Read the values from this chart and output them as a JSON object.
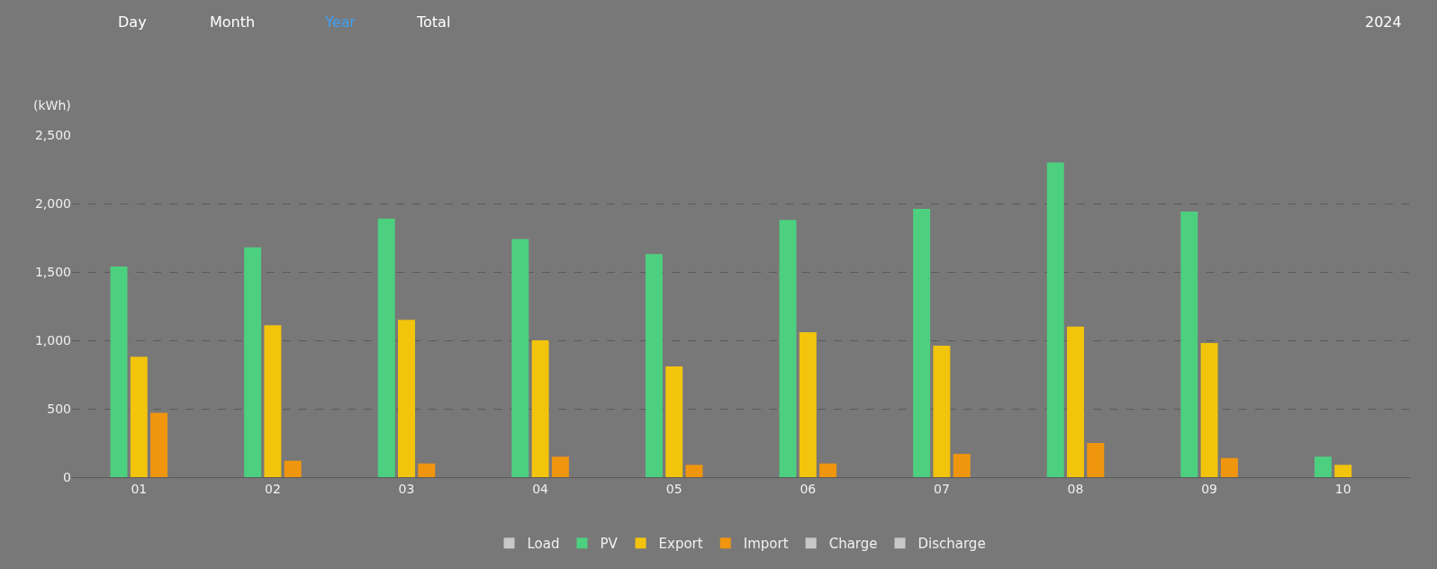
{
  "chart_data": {
    "type": "bar",
    "ylabel": "(kWh)",
    "annotations": [
      "Day",
      "Month",
      "Year",
      "Total",
      "2024"
    ],
    "categories": [
      "01",
      "02",
      "03",
      "04",
      "05",
      "06",
      "07",
      "08",
      "09",
      "10"
    ],
    "series": [
      {
        "name": "Load",
        "color": "#c8c8c8",
        "values": [
          null,
          null,
          null,
          null,
          null,
          null,
          null,
          null,
          null,
          null
        ]
      },
      {
        "name": "PV",
        "color": "#4cd080",
        "values": [
          1540,
          1680,
          1890,
          1740,
          1630,
          1880,
          1960,
          2300,
          1940,
          150
        ]
      },
      {
        "name": "Export",
        "color": "#f2c40c",
        "values": [
          880,
          1110,
          1150,
          1000,
          810,
          1060,
          960,
          1100,
          980,
          90
        ]
      },
      {
        "name": "Import",
        "color": "#f0960e",
        "values": [
          470,
          120,
          100,
          150,
          90,
          100,
          170,
          250,
          140,
          null
        ]
      },
      {
        "name": "Charge",
        "color": "#c8c8c8",
        "values": [
          null,
          null,
          null,
          null,
          null,
          null,
          null,
          null,
          null,
          null
        ]
      },
      {
        "name": "Discharge",
        "color": "#c8c8c8",
        "values": [
          null,
          null,
          null,
          null,
          null,
          null,
          null,
          null,
          null,
          null
        ]
      }
    ],
    "ylim": [
      0,
      2500
    ],
    "yticks": [
      0,
      {
        "value": 500,
        "label": "500"
      },
      {
        "value": 1000,
        "label": "1,000"
      },
      {
        "value": 1500,
        "label": "1,500"
      },
      {
        "value": 2000,
        "label": "2,000"
      },
      {
        "value": 2500,
        "label": "2,500"
      }
    ],
    "grid": "y",
    "legend": "bottom"
  }
}
